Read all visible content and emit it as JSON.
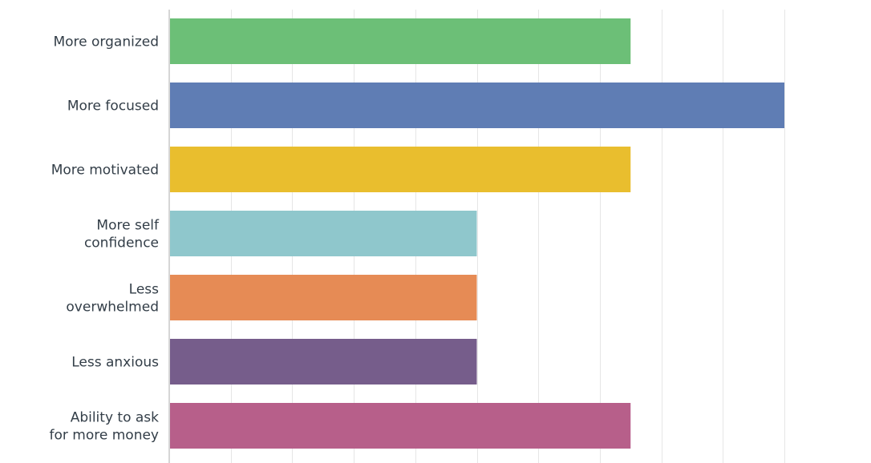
{
  "chart_data": {
    "type": "bar",
    "orientation": "horizontal",
    "categories": [
      [
        "More organized"
      ],
      [
        "More focused"
      ],
      [
        "More motivated"
      ],
      [
        "More self",
        "confidence"
      ],
      [
        "Less",
        "overwhelmed"
      ],
      [
        "Less anxious"
      ],
      [
        "Ability to ask",
        "for more money"
      ]
    ],
    "values": [
      75,
      100,
      75,
      50,
      50,
      50,
      75
    ],
    "colors": [
      "#6cbf77",
      "#5f7db4",
      "#e9be2e",
      "#8fc7cc",
      "#e68b55",
      "#765d8b",
      "#b75f8a"
    ],
    "xlim": [
      0,
      100
    ],
    "grid": true,
    "title": "",
    "xlabel": "",
    "ylabel": ""
  }
}
